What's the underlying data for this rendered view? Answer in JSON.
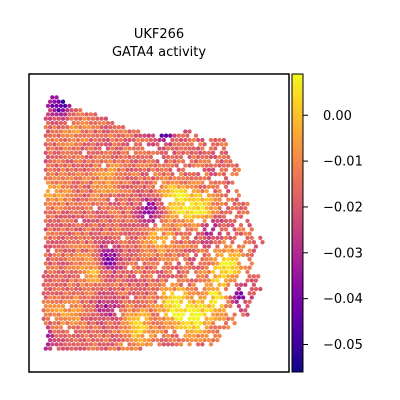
{
  "chart_data": {
    "type": "scatter",
    "title_lines": [
      "UKF266",
      "GATA4 activity"
    ],
    "xlabel": "",
    "ylabel": "",
    "grid": false,
    "legend": "none",
    "colorbar": {
      "colormap": "plasma",
      "vmin": -0.056,
      "vmax": 0.009,
      "ticks": [
        0.0,
        -0.01,
        -0.02,
        -0.03,
        -0.04,
        -0.05
      ],
      "tick_labels": [
        "0.00",
        "−0.01",
        "−0.02",
        "−0.03",
        "−0.04",
        "−0.05"
      ]
    },
    "tissue_outline": [
      [
        0.06,
        0.93
      ],
      [
        0.24,
        0.93
      ],
      [
        0.5,
        0.92
      ],
      [
        0.72,
        0.92
      ],
      [
        0.76,
        0.86
      ],
      [
        0.84,
        0.81
      ],
      [
        0.85,
        0.78
      ],
      [
        0.9,
        0.72
      ],
      [
        0.88,
        0.66
      ],
      [
        0.86,
        0.62
      ],
      [
        0.91,
        0.58
      ],
      [
        0.87,
        0.52
      ],
      [
        0.86,
        0.45
      ],
      [
        0.8,
        0.4
      ],
      [
        0.82,
        0.33
      ],
      [
        0.78,
        0.28
      ],
      [
        0.76,
        0.21
      ],
      [
        0.7,
        0.2
      ],
      [
        0.62,
        0.19
      ],
      [
        0.52,
        0.2
      ],
      [
        0.46,
        0.18
      ],
      [
        0.38,
        0.18
      ],
      [
        0.24,
        0.13
      ],
      [
        0.16,
        0.11
      ],
      [
        0.1,
        0.07
      ],
      [
        0.07,
        0.09
      ],
      [
        0.06,
        0.18
      ],
      [
        0.06,
        0.3
      ],
      [
        0.06,
        0.4
      ],
      [
        0.06,
        0.5
      ],
      [
        0.06,
        0.6
      ],
      [
        0.05,
        0.7
      ],
      [
        0.05,
        0.8
      ],
      [
        0.07,
        0.88
      ]
    ],
    "hotspots": [
      {
        "x": 0.25,
        "y": 0.65,
        "value": 0.0
      },
      {
        "x": 0.15,
        "y": 0.8,
        "value": -0.005
      },
      {
        "x": 0.42,
        "y": 0.85,
        "value": 0.002
      },
      {
        "x": 0.56,
        "y": 0.78,
        "value": 0.007
      },
      {
        "x": 0.64,
        "y": 0.82,
        "value": 0.006
      },
      {
        "x": 0.76,
        "y": 0.64,
        "value": 0.008
      },
      {
        "x": 0.56,
        "y": 0.42,
        "value": 0.006
      },
      {
        "x": 0.66,
        "y": 0.46,
        "value": 0.008
      },
      {
        "x": 0.3,
        "y": 0.35,
        "value": -0.005
      },
      {
        "x": 0.1,
        "y": 0.4,
        "value": -0.006
      },
      {
        "x": 0.18,
        "y": 0.18,
        "value": -0.008
      },
      {
        "x": 0.5,
        "y": 0.55,
        "value": -0.004
      },
      {
        "x": 0.72,
        "y": 0.75,
        "value": 0.004
      }
    ],
    "coldspots": [
      {
        "x": 0.3,
        "y": 0.62,
        "value": -0.045
      },
      {
        "x": 0.47,
        "y": 0.46,
        "value": -0.04
      },
      {
        "x": 0.52,
        "y": 0.18,
        "value": -0.052
      },
      {
        "x": 0.12,
        "y": 0.1,
        "value": -0.05
      },
      {
        "x": 0.8,
        "y": 0.74,
        "value": -0.04
      },
      {
        "x": 0.7,
        "y": 0.52,
        "value": -0.036
      },
      {
        "x": 0.3,
        "y": 0.78,
        "value": -0.03
      },
      {
        "x": 0.07,
        "y": 0.9,
        "value": -0.03
      }
    ],
    "mean_value": -0.016
  }
}
